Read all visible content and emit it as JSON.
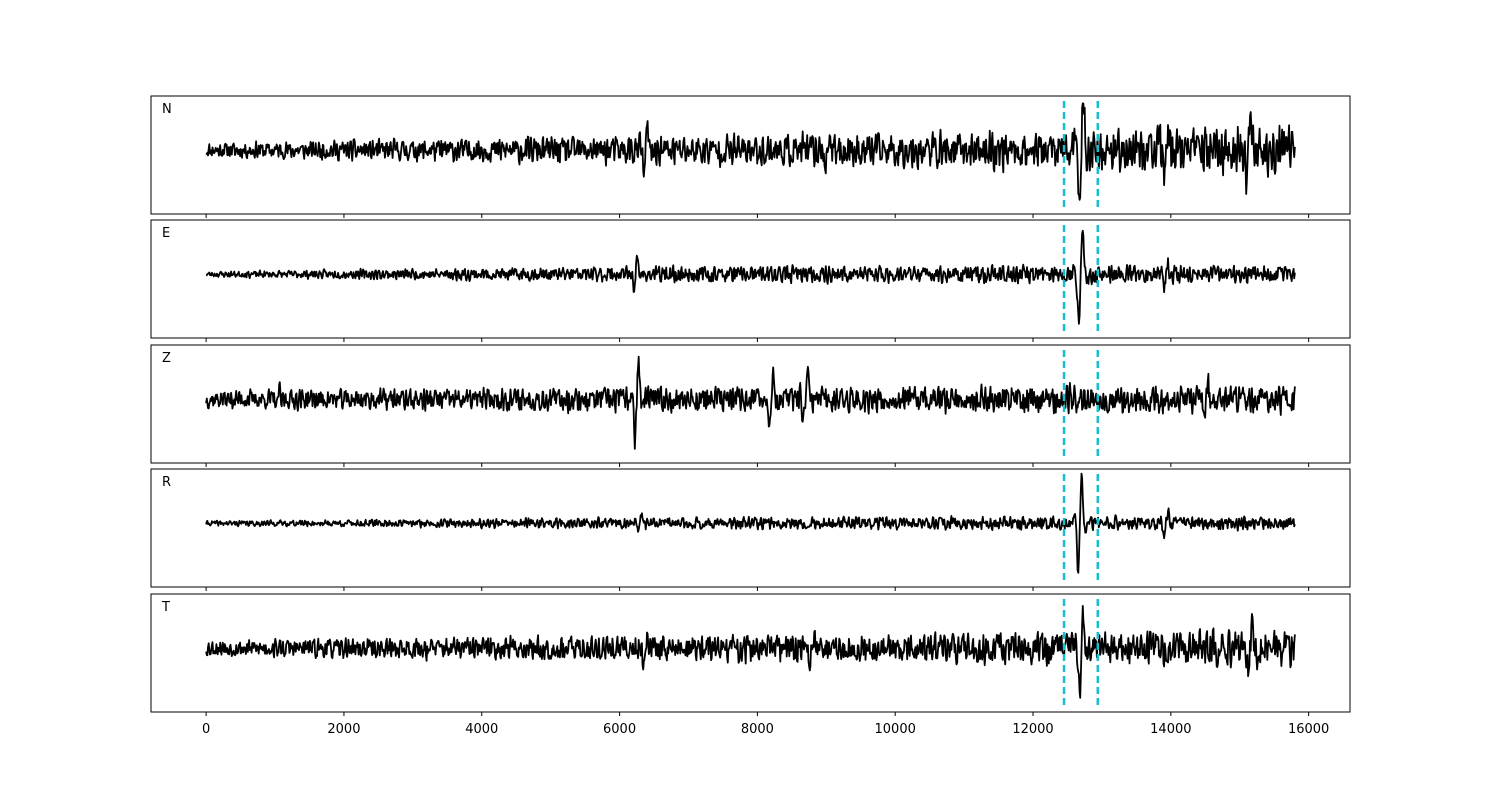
{
  "chart_data": {
    "type": "line",
    "title": "",
    "xlabel": "",
    "ylabel": "",
    "xlim": [
      -800,
      16600
    ],
    "x_ticks": [
      0,
      2000,
      4000,
      6000,
      8000,
      10000,
      12000,
      14000,
      16000
    ],
    "x_tick_labels": [
      "0",
      "2000",
      "4000",
      "6000",
      "8000",
      "10000",
      "12000",
      "14000",
      "16000"
    ],
    "grid": false,
    "legend": "none",
    "sample_range": [
      0,
      15800
    ],
    "window_markers": {
      "x": [
        12450,
        12940
      ],
      "color": "#17becf",
      "style": "dashed"
    },
    "trace_color": "#000000",
    "panels": [
      {
        "label": "N",
        "seed": 11,
        "noise": [
          [
            0,
            0.1
          ],
          [
            6300,
            0.2
          ],
          [
            12600,
            0.26
          ],
          [
            15800,
            0.34
          ]
        ],
        "bursts": [
          {
            "x": 6380,
            "amp": 0.4,
            "width": 60
          },
          {
            "x": 9020,
            "amp": 0.3,
            "width": 60
          },
          {
            "x": 12700,
            "amp": 1.0,
            "width": 70
          },
          {
            "x": 13930,
            "amp": 0.32,
            "width": 70
          },
          {
            "x": 15120,
            "amp": 0.38,
            "width": 80
          }
        ]
      },
      {
        "label": "E",
        "seed": 23,
        "noise": [
          [
            0,
            0.05
          ],
          [
            6200,
            0.14
          ],
          [
            12600,
            0.16
          ],
          [
            15800,
            0.14
          ]
        ],
        "bursts": [
          {
            "x": 6230,
            "amp": 0.25,
            "width": 60
          },
          {
            "x": 12690,
            "amp": 1.0,
            "width": 70
          },
          {
            "x": 13930,
            "amp": 0.26,
            "width": 60
          }
        ]
      },
      {
        "label": "Z",
        "seed": 37,
        "noise": [
          [
            0,
            0.18
          ],
          [
            6000,
            0.24
          ],
          [
            15800,
            0.27
          ]
        ],
        "bursts": [
          {
            "x": 1040,
            "amp": 0.28,
            "width": 40
          },
          {
            "x": 6250,
            "amp": 0.95,
            "width": 60
          },
          {
            "x": 8200,
            "amp": 0.45,
            "width": 70
          },
          {
            "x": 8700,
            "amp": 0.55,
            "width": 70
          },
          {
            "x": 14510,
            "amp": 0.35,
            "width": 60
          }
        ]
      },
      {
        "label": "R",
        "seed": 41,
        "noise": [
          [
            0,
            0.04
          ],
          [
            6200,
            0.09
          ],
          [
            12600,
            0.11
          ],
          [
            15800,
            0.1
          ]
        ],
        "bursts": [
          {
            "x": 6300,
            "amp": 0.2,
            "width": 60
          },
          {
            "x": 12680,
            "amp": 1.0,
            "width": 60
          },
          {
            "x": 13930,
            "amp": 0.22,
            "width": 60
          }
        ]
      },
      {
        "label": "T",
        "seed": 53,
        "noise": [
          [
            0,
            0.16
          ],
          [
            6300,
            0.26
          ],
          [
            12600,
            0.32
          ],
          [
            15800,
            0.36
          ]
        ],
        "bursts": [
          {
            "x": 6380,
            "amp": 0.45,
            "width": 60
          },
          {
            "x": 8780,
            "amp": 0.3,
            "width": 60
          },
          {
            "x": 12700,
            "amp": 1.0,
            "width": 60
          },
          {
            "x": 15150,
            "amp": 0.42,
            "width": 80
          }
        ]
      }
    ]
  }
}
